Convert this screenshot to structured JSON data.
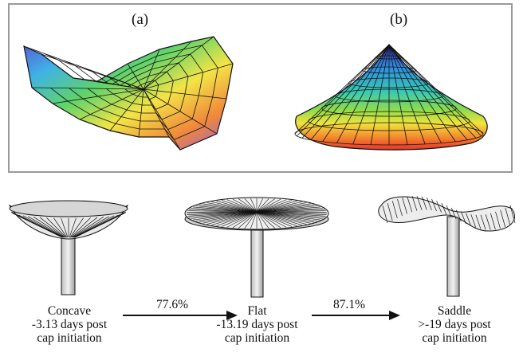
{
  "panels": {
    "a_label": "(a)",
    "b_label": "(b)"
  },
  "stages": [
    {
      "name": "Concave",
      "days": "-3.13 days post",
      "suffix": "cap initiation"
    },
    {
      "name": "Flat",
      "days": "-13.19 days post",
      "suffix": "cap initiation"
    },
    {
      "name": "Saddle",
      "days": ">-19 days post",
      "suffix": "cap initiation"
    }
  ],
  "transitions": [
    "77.6%",
    "87.1%"
  ],
  "colors": {
    "frame": "#9a9a9a",
    "stroke": "#111111"
  },
  "icons": {
    "a": "saddle-surface-icon",
    "b": "cone-surface-icon",
    "m1": "concave-mushroom-icon",
    "m2": "flat-mushroom-icon",
    "m3": "saddle-mushroom-icon"
  }
}
